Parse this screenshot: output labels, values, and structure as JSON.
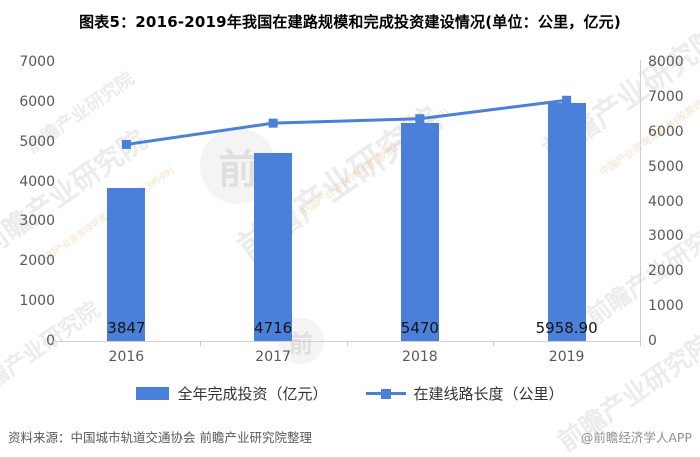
{
  "title": "图表5：2016-2019年我国在建路规模和完成投资建设情况(单位：公里，亿元)",
  "chart_data": {
    "type": "combo",
    "categories": [
      "2016",
      "2017",
      "2018",
      "2019"
    ],
    "series": [
      {
        "name": "全年完成投资（亿元）",
        "type": "bar",
        "axis": "left",
        "values": [
          3847,
          4716,
          5470,
          5958.9
        ],
        "value_labels": [
          "3847",
          "4716",
          "5470",
          "5958.90"
        ]
      },
      {
        "name": "在建线路长度（公里）",
        "type": "line",
        "axis": "right",
        "values": [
          5636.5,
          6246.3,
          6374,
          6902.5
        ]
      }
    ],
    "left_axis": {
      "min": 0,
      "max": 7000,
      "tick_step": 1000,
      "ticks": [
        "0",
        "1000",
        "2000",
        "3000",
        "4000",
        "5000",
        "6000",
        "7000"
      ]
    },
    "right_axis": {
      "min": 0,
      "max": 8000,
      "tick_step": 1000,
      "ticks": [
        "0",
        "1000",
        "2000",
        "3000",
        "4000",
        "5000",
        "6000",
        "7000",
        "8000"
      ]
    },
    "grid": "off",
    "legend_position": "bottom"
  },
  "legend": {
    "items": [
      {
        "label": "全年完成投资（亿元）",
        "swatch": "bar"
      },
      {
        "label": "在建线路长度（公里）",
        "swatch": "line-marker"
      }
    ]
  },
  "footer": {
    "source": "资料来源：中国城市轨道交通协会 前瞻产业研究院整理",
    "credit": "@前瞻经济学人APP"
  },
  "watermark": {
    "text": "前瞻产业研究院",
    "sub": "中国产业咨询领导者(股票代码:839599)",
    "logo_glyph": "前"
  },
  "colors": {
    "primary": "#4A80D9",
    "axis_text": "#595959",
    "axis_line": "#D0D0D0",
    "title_text": "#1F1F1F",
    "data_label": "#141414",
    "footer_text": "#595959",
    "credit_text": "#8F8F8F"
  }
}
